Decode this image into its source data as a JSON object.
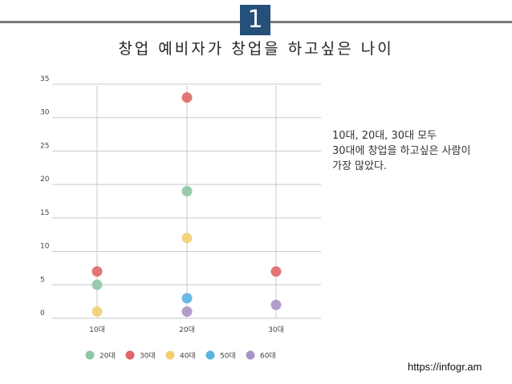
{
  "slide_number": "1",
  "title": "창업 예비자가 창업을 하고싶은 나이",
  "note_lines": [
    "10대, 20대, 30대 모두",
    "30대에 창업을 하고싶은 사람이",
    "가장 많았다."
  ],
  "source": "https://infogr.am",
  "colors": {
    "badge": "#24507a",
    "rule": "#7a7a7a",
    "grid": "#c8c8c8",
    "axis_label": "#444444"
  },
  "chart_data": {
    "type": "scatter",
    "categories": [
      "10대",
      "20대",
      "30대"
    ],
    "y_ticks": [
      0,
      5,
      10,
      15,
      20,
      25,
      30,
      35
    ],
    "ylim": [
      0,
      35
    ],
    "grid": true,
    "legend_position": "bottom",
    "series": [
      {
        "name": "20대",
        "color": "#8ec7a6",
        "values": [
          5,
          19,
          null
        ]
      },
      {
        "name": "30대",
        "color": "#e06767",
        "values": [
          7,
          33,
          7
        ]
      },
      {
        "name": "40대",
        "color": "#f2cf72",
        "values": [
          1,
          12,
          null
        ]
      },
      {
        "name": "50대",
        "color": "#5bb3e3",
        "values": [
          null,
          3,
          null
        ]
      },
      {
        "name": "60대",
        "color": "#a893c8",
        "values": [
          null,
          1,
          2
        ]
      }
    ]
  }
}
